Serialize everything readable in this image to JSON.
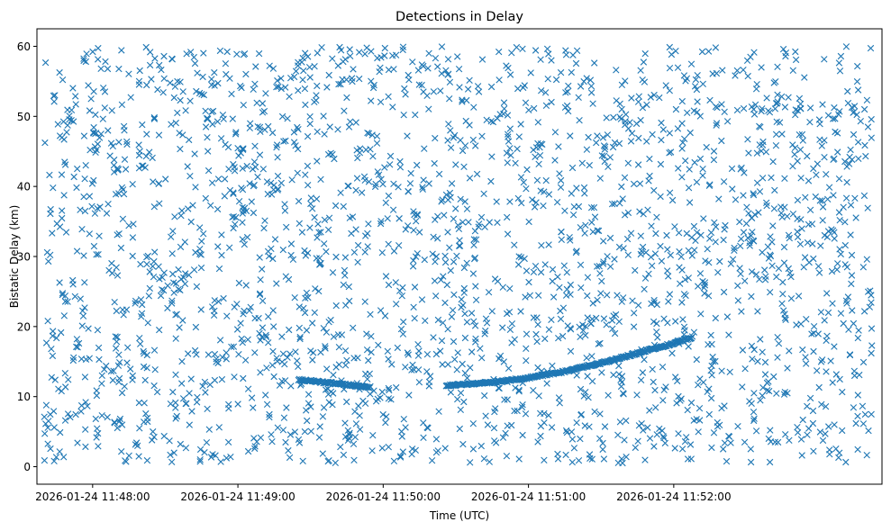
{
  "figure": {
    "background": "#ffffff"
  },
  "chart_data": {
    "type": "scatter",
    "title": "Detections in Delay",
    "xlabel": "Time (UTC)",
    "ylabel": "Bistatic Delay (km)",
    "marker": "x",
    "color": "#1f77b4",
    "grid": false,
    "legend": "none",
    "xlim": [
      "2026-01-24 11:47:37",
      "2026-01-24 11:53:26"
    ],
    "ylim": [
      -2.5,
      62.5
    ],
    "xticks": [
      "2026-01-24 11:48:00",
      "2026-01-24 11:49:00",
      "2026-01-24 11:50:00",
      "2026-01-24 11:51:00",
      "2026-01-24 11:52:00"
    ],
    "yticks": [
      0,
      10,
      20,
      30,
      40,
      50,
      60
    ],
    "x_range": [
      "2026-01-24 11:47:40",
      "2026-01-24 11:53:22"
    ],
    "y_range": [
      0.5,
      60
    ],
    "approx_point_count": 2400,
    "noise_description": "uniformly scattered clutter detections between 0 and 60 km over the full time span",
    "tracks": [
      {
        "points": [
          {
            "x": "2026-01-24 11:49:25",
            "y": 12.4
          },
          {
            "x": "2026-01-24 11:49:40",
            "y": 11.9
          },
          {
            "x": "2026-01-24 11:49:55",
            "y": 11.3
          }
        ]
      },
      {
        "points": [
          {
            "x": "2026-01-24 11:50:26",
            "y": 11.6
          },
          {
            "x": "2026-01-24 11:50:45",
            "y": 12.0
          },
          {
            "x": "2026-01-24 11:51:00",
            "y": 12.7
          },
          {
            "x": "2026-01-24 11:51:15",
            "y": 13.6
          },
          {
            "x": "2026-01-24 11:51:30",
            "y": 14.8
          },
          {
            "x": "2026-01-24 11:51:45",
            "y": 16.2
          },
          {
            "x": "2026-01-24 11:52:00",
            "y": 17.6
          },
          {
            "x": "2026-01-24 11:52:08",
            "y": 18.5
          }
        ]
      }
    ]
  }
}
